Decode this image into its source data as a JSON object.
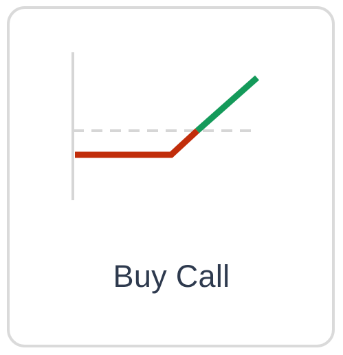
{
  "card": {
    "label": "Buy Call"
  },
  "diagram": {
    "icon": "buy-call-payoff-icon",
    "loss_color": "#c12d0a",
    "profit_color": "#149a5a",
    "axis_color": "#d6d6d6",
    "breakeven_color": "#d6d6d6"
  }
}
